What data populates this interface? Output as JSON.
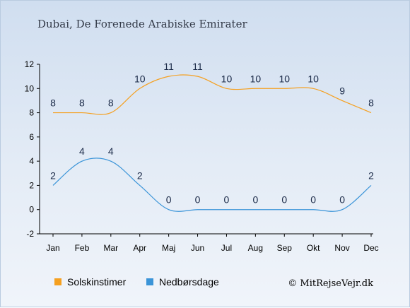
{
  "chart_data": {
    "type": "line",
    "title": "Dubai, De Forenede Arabiske Emirater",
    "categories": [
      "Jan",
      "Feb",
      "Mar",
      "Apr",
      "Maj",
      "Jun",
      "Jul",
      "Aug",
      "Sep",
      "Okt",
      "Nov",
      "Dec"
    ],
    "series": [
      {
        "name": "Solskinstimer",
        "color": "#f5a020",
        "values": [
          8,
          8,
          8,
          10,
          11,
          11,
          10,
          10,
          10,
          10,
          9,
          8
        ]
      },
      {
        "name": "Nedbørsdage",
        "color": "#3a94d8",
        "values": [
          2,
          4,
          4,
          2,
          0,
          0,
          0,
          0,
          0,
          0,
          0,
          2
        ]
      }
    ],
    "yticks": [
      -2,
      0,
      2,
      4,
      6,
      8,
      10,
      12
    ],
    "ylim": [
      -2,
      12
    ],
    "grid": false,
    "legend_position": "bottom-left"
  },
  "credit": "© MitRejseVejr.dk"
}
